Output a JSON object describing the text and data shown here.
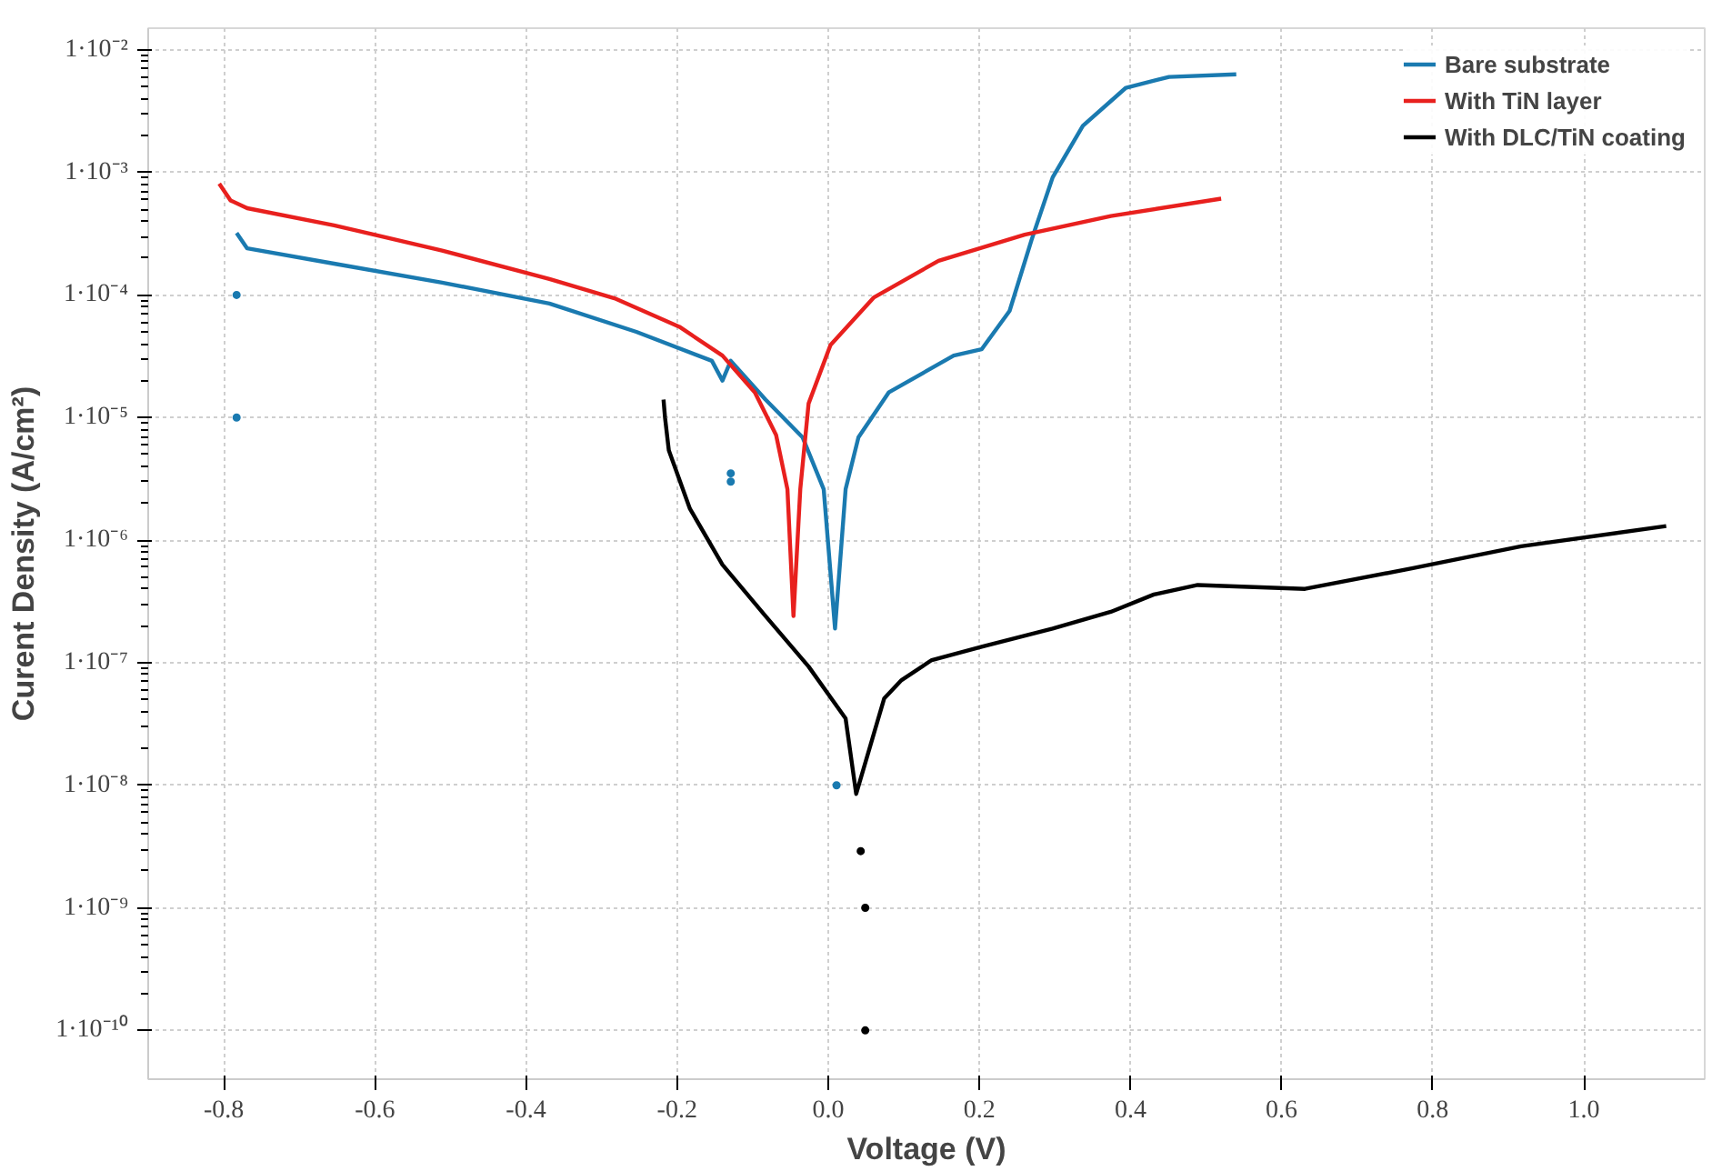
{
  "chart_data": {
    "type": "line",
    "xlabel": "Voltage (V)",
    "ylabel": "Curent Density (A/cm²)",
    "log": "y",
    "grid": true,
    "legend": "top right",
    "marker": "none",
    "line_style": "solid",
    "xlim": [
      -0.9,
      1.16
    ],
    "ylim": [
      4e-11,
      0.015
    ],
    "xticks": [
      {
        "value": -0.8,
        "label": "-0.8"
      },
      {
        "value": -0.6,
        "label": "-0.6"
      },
      {
        "value": -0.4,
        "label": "-0.4"
      },
      {
        "value": -0.2,
        "label": "-0.2"
      },
      {
        "value": 0,
        "label": "0.0"
      },
      {
        "value": 0.2,
        "label": "0.2"
      },
      {
        "value": 0.4,
        "label": "0.4"
      },
      {
        "value": 0.6,
        "label": "0.6"
      },
      {
        "value": 0.8,
        "label": "0.8"
      },
      {
        "value": 1,
        "label": "1.0"
      }
    ],
    "yticks": [
      {
        "value": 0.01,
        "label": "1·10⁻²"
      },
      {
        "value": 0.001,
        "label": "1·10⁻³"
      },
      {
        "value": 0.0001,
        "label": "1·10⁻⁴"
      },
      {
        "value": 1e-05,
        "label": "1·10⁻⁵"
      },
      {
        "value": 1e-06,
        "label": "1·10⁻⁶"
      },
      {
        "value": 1e-07,
        "label": "1·10⁻⁷"
      },
      {
        "value": 1e-08,
        "label": "1·10⁻⁸"
      },
      {
        "value": 1e-09,
        "label": "1·10⁻⁹"
      },
      {
        "value": 1e-10,
        "label": "1·10⁻¹⁰"
      }
    ],
    "series": [
      {
        "name": "Bare substrate",
        "color": "#1a7ab0",
        "x": [
          -0.783,
          -0.769,
          -0.654,
          -0.511,
          -0.369,
          -0.254,
          -0.154,
          -0.14,
          -0.129,
          -0.083,
          -0.034,
          -0.006,
          0.009,
          0.023,
          0.04,
          0.08,
          0.166,
          0.203,
          0.24,
          0.269,
          0.297,
          0.337,
          0.394,
          0.451,
          0.54
        ],
        "values": [
          0.00032,
          0.00024,
          0.00018,
          0.000126,
          8.5e-05,
          5e-05,
          2.9e-05,
          2e-05,
          2.9e-05,
          1.4e-05,
          6.9e-06,
          2.6e-06,
          1.9e-07,
          2.6e-06,
          6.9e-06,
          1.6e-05,
          3.2e-05,
          3.6e-05,
          7.4e-05,
          0.00028,
          0.00091,
          0.0024,
          0.0049,
          0.006,
          0.0063
        ]
      },
      {
        "name": "With TiN layer",
        "color": "#e8201e",
        "x": [
          -0.806,
          -0.791,
          -0.769,
          -0.654,
          -0.511,
          -0.369,
          -0.283,
          -0.197,
          -0.14,
          -0.097,
          -0.069,
          -0.054,
          -0.046,
          -0.037,
          -0.026,
          0.003,
          0.06,
          0.146,
          0.26,
          0.374,
          0.52
        ],
        "values": [
          0.00081,
          0.00059,
          0.00051,
          0.00037,
          0.00023,
          0.000135,
          9.4e-05,
          5.5e-05,
          3.2e-05,
          1.6e-05,
          7.2e-06,
          2.6e-06,
          2.4e-07,
          2.6e-06,
          1.3e-05,
          3.9e-05,
          9.5e-05,
          0.00019,
          0.00031,
          0.00044,
          0.00061
        ]
      },
      {
        "name": "With DLC/TiN coating",
        "color": "#000000",
        "x": [
          -0.218,
          -0.216,
          -0.211,
          -0.183,
          -0.14,
          -0.083,
          -0.026,
          0.023,
          0.037,
          0.074,
          0.097,
          0.137,
          0.203,
          0.297,
          0.374,
          0.431,
          0.489,
          0.631,
          0.774,
          0.917,
          1.109
        ],
        "values": [
          1.4e-05,
          1e-05,
          5.4e-06,
          1.8e-06,
          6.3e-07,
          2.4e-07,
          9.3e-08,
          3.5e-08,
          8.5e-09,
          5.1e-08,
          7.2e-08,
          1.05e-07,
          1.35e-07,
          1.9e-07,
          2.6e-07,
          3.6e-07,
          4.3e-07,
          4e-07,
          5.9e-07,
          8.9e-07,
          1.3e-06
        ]
      },
      {
        "type": "scatter",
        "color": "#1a7ab0",
        "x": [
          -0.783,
          -0.783,
          -0.129,
          -0.129,
          0.011
        ],
        "values": [
          0.0001,
          1e-05,
          3.5e-06,
          3e-06,
          1e-08
        ]
      },
      {
        "type": "scatter",
        "color": "#000000",
        "x": [
          0.043,
          0.049,
          0.049
        ],
        "values": [
          2.9e-09,
          1e-09,
          1e-10
        ]
      }
    ]
  }
}
